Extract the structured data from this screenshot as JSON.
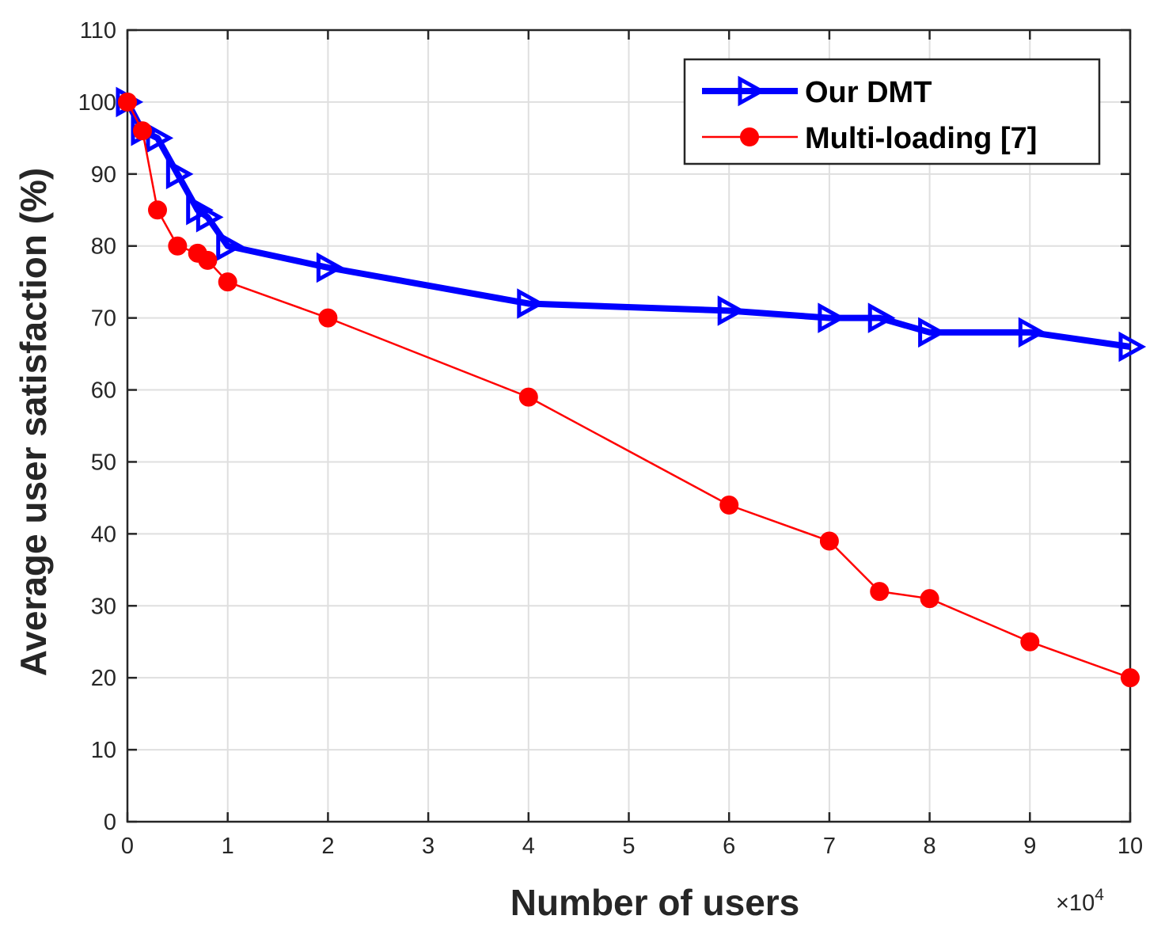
{
  "chart_data": {
    "type": "line",
    "title": "",
    "xlabel": "Number of users",
    "ylabel": "Average user satisfaction (%)",
    "x_scale_label": "×10",
    "x_scale_exponent": "4",
    "xlim": [
      0,
      10
    ],
    "ylim": [
      0,
      110
    ],
    "xticks": [
      0,
      1,
      2,
      3,
      4,
      5,
      6,
      7,
      8,
      9,
      10
    ],
    "yticks": [
      0,
      10,
      20,
      30,
      40,
      50,
      60,
      70,
      80,
      90,
      100,
      110
    ],
    "grid": true,
    "legend_position": "top-right",
    "series": [
      {
        "name": "Our DMT",
        "color": "#0000ff",
        "marker": "triangle-right",
        "x": [
          0,
          0.15,
          0.3,
          0.5,
          0.7,
          0.8,
          1,
          2,
          4,
          6,
          7,
          7.5,
          8,
          9,
          10
        ],
        "y": [
          100,
          96,
          95,
          90,
          85,
          84,
          80,
          77,
          72,
          71,
          70,
          70,
          68,
          68,
          66
        ]
      },
      {
        "name": "Multi-loading [7]",
        "color": "#ff0000",
        "marker": "circle",
        "x": [
          0,
          0.15,
          0.3,
          0.5,
          0.7,
          0.8,
          1,
          2,
          4,
          6,
          7,
          7.5,
          8,
          9,
          10
        ],
        "y": [
          100,
          96,
          85,
          80,
          79,
          78,
          75,
          70,
          59,
          44,
          39,
          32,
          31,
          25,
          20
        ]
      }
    ]
  }
}
